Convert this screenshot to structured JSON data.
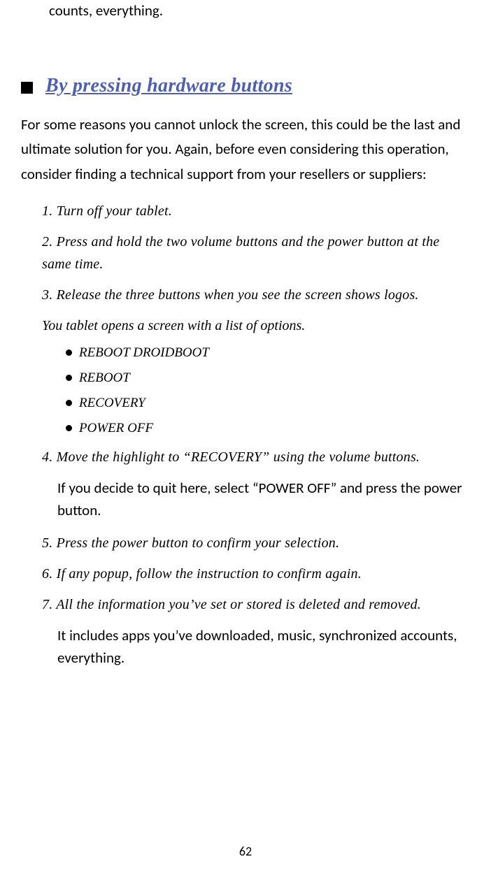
{
  "colors": {
    "text": "#000000",
    "heading": "#4d5fae",
    "background": "#ffffff"
  },
  "top_fragment": "counts, everything.",
  "section_heading": "By pressing hardware buttons",
  "intro": "For some reasons you cannot unlock the screen, this could be the last and ultimate solution for you. Again, before even considering this operation, consider finding a technical support from your resellers or suppliers:",
  "steps": {
    "s1": "1. Turn off your tablet.",
    "s2": "2. Press and hold the two volume buttons and the power button at the same time.",
    "s3": "3. Release the three buttons when you see the screen shows logos.",
    "s3_note": "You tablet opens a screen with a list of options.",
    "options": {
      "o1": "REBOOT DROIDBOOT",
      "o2": "REBOOT",
      "o3": "RECOVERY",
      "o4": "POWER OFF"
    },
    "s4": "4. Move the highlight to “RECOVERY” using the volume buttons.",
    "s4_note": "If you decide to quit here, select “POWER OFF” and press the power button.",
    "s5": "5. Press the power button to confirm your selection.",
    "s6": "6. If any popup, follow the instruction to confirm again.",
    "s7": "7. All the information you’ve set or stored is deleted and removed.",
    "s7_note": "It includes apps you’ve downloaded, music, synchronized accounts, everything."
  },
  "page_number": "62"
}
